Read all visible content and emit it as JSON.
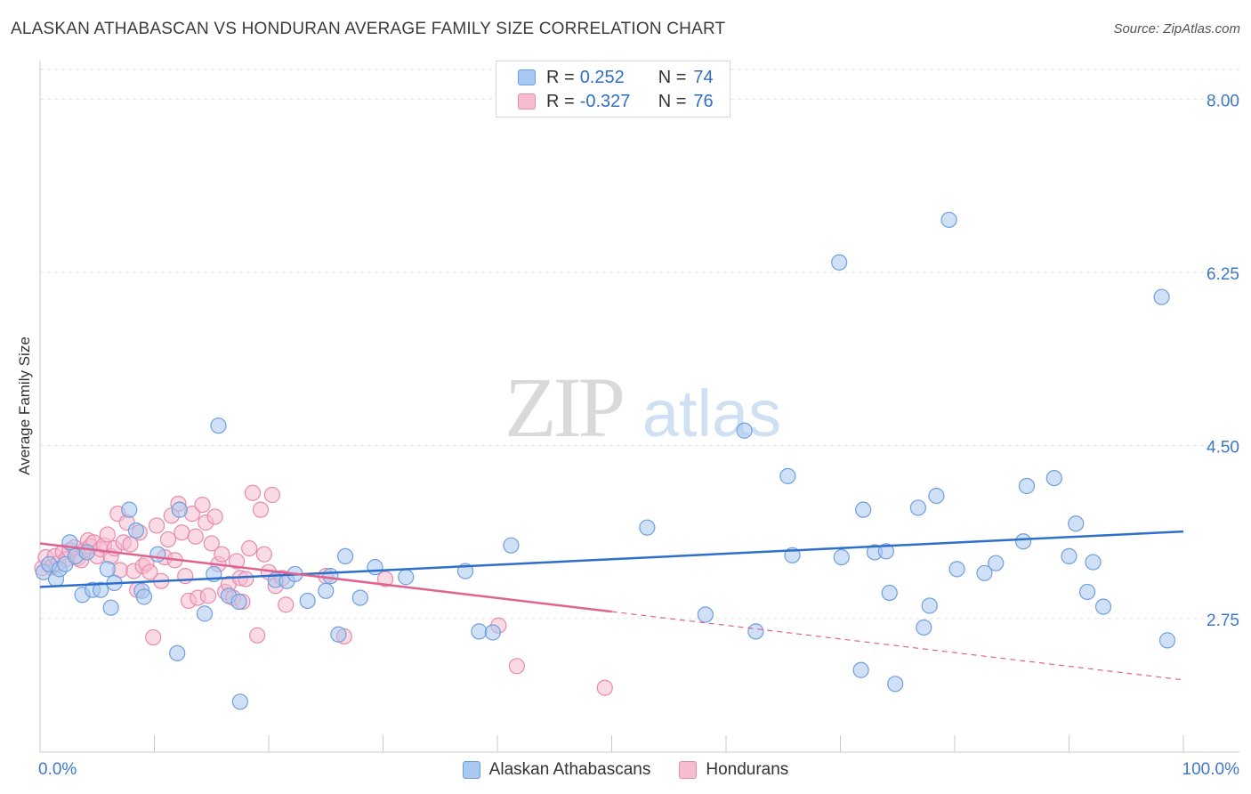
{
  "header": {
    "title": "ALASKAN ATHABASCAN VS HONDURAN AVERAGE FAMILY SIZE CORRELATION CHART",
    "source": "Source: ZipAtlas.com"
  },
  "watermark": {
    "zip": "ZIP",
    "atlas": "atlas"
  },
  "legend": {
    "rows": [
      {
        "r_label": "R =",
        "r_value": "0.252",
        "n_label": "N =",
        "n_value": "74"
      },
      {
        "r_label": "R =",
        "r_value": "-0.327",
        "n_label": "N =",
        "n_value": "76"
      }
    ]
  },
  "colors": {
    "blue_fill": "#a9c8f0",
    "blue_stroke": "#6f9fdc",
    "blue_line": "#2d6fca",
    "pink_fill": "#f6bcd0",
    "pink_stroke": "#e88aac",
    "pink_line": "#e0628f",
    "tick_label": "#3f78c8",
    "grid": "#e3e3e3"
  },
  "chart_data": {
    "type": "scatter",
    "title": "ALASKAN ATHABASCAN VS HONDURAN AVERAGE FAMILY SIZE CORRELATION CHART",
    "xlabel": "",
    "ylabel": "Average Family Size",
    "xlim": [
      0,
      100
    ],
    "ylim": [
      1.4,
      8.3
    ],
    "x_tick_labels": [
      "0.0%",
      "100.0%"
    ],
    "y_ticks": [
      2.75,
      4.5,
      6.25,
      8.0
    ],
    "y_tick_labels": [
      "2.75",
      "4.50",
      "6.25",
      "8.00"
    ],
    "grid": true,
    "legend_position": "top-center",
    "series": [
      {
        "name": "Alaskan Athabascans",
        "color": "#a9c8f0",
        "trend": {
          "x": [
            0,
            100
          ],
          "y": [
            3.07,
            3.63
          ]
        },
        "points": [
          [
            0.3,
            3.22
          ],
          [
            0.8,
            3.3
          ],
          [
            1.4,
            3.15
          ],
          [
            1.7,
            3.25
          ],
          [
            2.2,
            3.3
          ],
          [
            2.6,
            3.52
          ],
          [
            3.1,
            3.38
          ],
          [
            3.7,
            2.99
          ],
          [
            4.1,
            3.42
          ],
          [
            4.6,
            3.04
          ],
          [
            5.3,
            3.04
          ],
          [
            5.9,
            3.25
          ],
          [
            6.2,
            2.86
          ],
          [
            6.5,
            3.11
          ],
          [
            7.8,
            3.85
          ],
          [
            8.4,
            3.64
          ],
          [
            8.9,
            3.03
          ],
          [
            9.1,
            2.97
          ],
          [
            10.3,
            3.4
          ],
          [
            12.0,
            2.4
          ],
          [
            12.2,
            3.85
          ],
          [
            14.4,
            2.8
          ],
          [
            15.2,
            3.2
          ],
          [
            15.6,
            4.7
          ],
          [
            16.5,
            2.98
          ],
          [
            17.4,
            2.92
          ],
          [
            17.5,
            1.91
          ],
          [
            20.6,
            3.14
          ],
          [
            21.6,
            3.13
          ],
          [
            22.3,
            3.2
          ],
          [
            23.4,
            2.93
          ],
          [
            25.0,
            3.03
          ],
          [
            25.4,
            3.18
          ],
          [
            26.1,
            2.59
          ],
          [
            26.7,
            3.38
          ],
          [
            28.0,
            2.96
          ],
          [
            29.3,
            3.27
          ],
          [
            32.0,
            3.17
          ],
          [
            37.2,
            3.23
          ],
          [
            38.4,
            2.62
          ],
          [
            39.6,
            2.61
          ],
          [
            41.2,
            3.49
          ],
          [
            53.1,
            3.67
          ],
          [
            58.2,
            2.79
          ],
          [
            61.6,
            4.65
          ],
          [
            62.6,
            2.62
          ],
          [
            65.4,
            4.19
          ],
          [
            65.8,
            3.39
          ],
          [
            69.9,
            6.35
          ],
          [
            70.1,
            3.37
          ],
          [
            71.8,
            2.23
          ],
          [
            72.0,
            3.85
          ],
          [
            73.0,
            3.42
          ],
          [
            74.0,
            3.43
          ],
          [
            74.3,
            3.01
          ],
          [
            74.8,
            2.09
          ],
          [
            76.8,
            3.87
          ],
          [
            77.3,
            2.66
          ],
          [
            77.8,
            2.88
          ],
          [
            78.4,
            3.99
          ],
          [
            79.5,
            6.78
          ],
          [
            80.2,
            3.25
          ],
          [
            82.6,
            3.21
          ],
          [
            83.6,
            3.31
          ],
          [
            86.0,
            3.53
          ],
          [
            86.3,
            4.09
          ],
          [
            88.7,
            4.17
          ],
          [
            90.0,
            3.38
          ],
          [
            90.6,
            3.71
          ],
          [
            91.6,
            3.02
          ],
          [
            92.1,
            3.32
          ],
          [
            93.0,
            2.87
          ],
          [
            98.1,
            6.0
          ],
          [
            98.6,
            2.53
          ]
        ]
      },
      {
        "name": "Hondurans",
        "color": "#f6bcd0",
        "trend": {
          "x": [
            0,
            50
          ],
          "y": [
            3.51,
            2.82
          ]
        },
        "trend_extension": {
          "x": [
            50,
            100
          ],
          "y": [
            2.82,
            2.13
          ]
        },
        "points": [
          [
            0.2,
            3.26
          ],
          [
            0.5,
            3.37
          ],
          [
            1.0,
            3.27
          ],
          [
            1.3,
            3.38
          ],
          [
            1.6,
            3.31
          ],
          [
            2.0,
            3.42
          ],
          [
            2.3,
            3.35
          ],
          [
            2.6,
            3.44
          ],
          [
            3.0,
            3.47
          ],
          [
            3.3,
            3.36
          ],
          [
            3.6,
            3.34
          ],
          [
            3.9,
            3.44
          ],
          [
            4.2,
            3.54
          ],
          [
            4.4,
            3.48
          ],
          [
            4.7,
            3.52
          ],
          [
            5.0,
            3.38
          ],
          [
            5.3,
            3.45
          ],
          [
            5.6,
            3.49
          ],
          [
            5.9,
            3.6
          ],
          [
            6.2,
            3.38
          ],
          [
            6.5,
            3.46
          ],
          [
            6.8,
            3.81
          ],
          [
            7.0,
            3.24
          ],
          [
            7.3,
            3.52
          ],
          [
            7.6,
            3.72
          ],
          [
            7.9,
            3.5
          ],
          [
            8.2,
            3.23
          ],
          [
            8.5,
            3.04
          ],
          [
            8.7,
            3.62
          ],
          [
            9.0,
            3.28
          ],
          [
            9.3,
            3.31
          ],
          [
            9.6,
            3.22
          ],
          [
            9.9,
            2.56
          ],
          [
            10.2,
            3.69
          ],
          [
            10.6,
            3.13
          ],
          [
            10.9,
            3.37
          ],
          [
            11.2,
            3.55
          ],
          [
            11.5,
            3.79
          ],
          [
            11.8,
            3.34
          ],
          [
            12.1,
            3.91
          ],
          [
            12.4,
            3.62
          ],
          [
            12.7,
            3.18
          ],
          [
            13.0,
            2.93
          ],
          [
            13.3,
            3.81
          ],
          [
            13.6,
            3.58
          ],
          [
            13.8,
            2.96
          ],
          [
            14.2,
            3.9
          ],
          [
            14.5,
            3.72
          ],
          [
            14.7,
            2.98
          ],
          [
            15.0,
            3.51
          ],
          [
            15.3,
            3.78
          ],
          [
            15.6,
            3.3
          ],
          [
            15.9,
            3.4
          ],
          [
            16.2,
            3.02
          ],
          [
            16.5,
            3.1
          ],
          [
            16.9,
            2.96
          ],
          [
            17.2,
            3.33
          ],
          [
            17.5,
            3.16
          ],
          [
            17.7,
            2.92
          ],
          [
            18.0,
            3.15
          ],
          [
            18.3,
            3.46
          ],
          [
            18.6,
            4.02
          ],
          [
            19.0,
            2.58
          ],
          [
            19.3,
            3.85
          ],
          [
            19.6,
            3.4
          ],
          [
            20.0,
            3.22
          ],
          [
            20.3,
            4.0
          ],
          [
            20.6,
            3.08
          ],
          [
            21.2,
            3.16
          ],
          [
            21.5,
            2.89
          ],
          [
            25.0,
            3.18
          ],
          [
            26.6,
            2.57
          ],
          [
            30.2,
            3.15
          ],
          [
            40.1,
            2.68
          ],
          [
            41.7,
            2.27
          ],
          [
            49.4,
            2.05
          ]
        ]
      }
    ]
  }
}
